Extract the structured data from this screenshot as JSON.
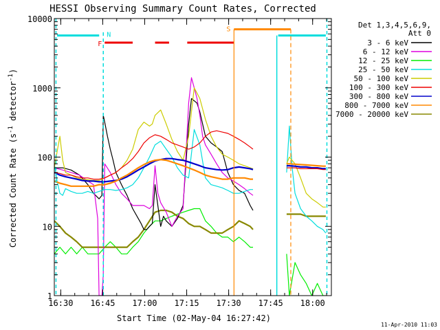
{
  "chart_data": {
    "type": "line",
    "title": "HESSI Observing Summary Count Rates, Corrected",
    "xlabel": "Start Time (02-May-04 16:27:42)",
    "ylabel": "Corrected Count Rate (s",
    "ylabel_sup1": "-1",
    "ylabel_mid": " detector",
    "ylabel_sup2": "-1",
    "ylabel_end": ")",
    "footer": "11-Apr-2010 11:03",
    "x_unit": "minutes since 16:27:42",
    "xlim": [
      0,
      99
    ],
    "ylim": [
      1,
      10000
    ],
    "yscale": "log",
    "x_ticks": [
      {
        "label": "16:30",
        "x": 2.3
      },
      {
        "label": "16:45",
        "x": 17.3
      },
      {
        "label": "17:00",
        "x": 32.3
      },
      {
        "label": "17:15",
        "x": 47.3
      },
      {
        "label": "17:30",
        "x": 62.3
      },
      {
        "label": "17:45",
        "x": 77.3
      },
      {
        "label": "18:00",
        "x": 92.3
      }
    ],
    "y_ticks": [
      {
        "label": "1",
        "v": 1
      },
      {
        "label": "10",
        "v": 10
      },
      {
        "label": "100",
        "v": 100
      },
      {
        "label": "1000",
        "v": 1000
      },
      {
        "label": "10000",
        "v": 10000
      }
    ],
    "legend_title": [
      "Det 1,3,4,5,6,9,",
      "Att 0"
    ],
    "gaps": [
      [
        72,
        83
      ]
    ],
    "series": [
      {
        "name": "3 - 6 keV",
        "color": "#000000",
        "x": [
          0,
          3,
          6,
          9,
          12,
          14,
          16,
          17,
          17.5,
          18,
          19,
          20,
          21,
          22,
          24,
          26,
          28,
          30,
          31,
          32,
          33,
          34,
          35,
          36,
          37,
          38,
          39,
          40,
          42,
          44,
          46,
          48,
          49,
          50,
          51,
          52,
          53,
          54,
          56,
          58,
          60,
          62,
          64,
          66,
          68,
          70,
          71
        ],
        "y": [
          70,
          70,
          65,
          55,
          40,
          30,
          25,
          28,
          400,
          320,
          200,
          130,
          90,
          60,
          40,
          28,
          18,
          13,
          11,
          9,
          9,
          10,
          11,
          40,
          20,
          10,
          14,
          12,
          10,
          13,
          20,
          300,
          700,
          650,
          600,
          450,
          300,
          200,
          160,
          140,
          120,
          60,
          40,
          33,
          30,
          20,
          17
        ]
      },
      {
        "name": "6 - 12 keV",
        "color": "#dd00dd",
        "x": [
          0,
          3,
          6,
          9,
          12,
          14,
          15.5,
          16,
          17,
          17.5,
          18,
          20,
          22,
          24,
          26,
          28,
          30,
          32,
          34,
          35,
          36,
          37,
          38,
          40,
          42,
          44,
          46,
          48,
          49,
          50,
          51,
          52,
          53,
          54,
          56,
          58,
          60,
          62,
          64,
          66,
          68,
          70,
          71
        ],
        "y": [
          70,
          65,
          60,
          55,
          45,
          40,
          13,
          1,
          1,
          2,
          80,
          60,
          40,
          30,
          25,
          20,
          20,
          20,
          18,
          20,
          75,
          30,
          22,
          16,
          10,
          14,
          18,
          600,
          1400,
          1000,
          700,
          400,
          200,
          150,
          110,
          80,
          60,
          50,
          45,
          40,
          35,
          30,
          28
        ]
      },
      {
        "name": "12 - 25 keV",
        "color": "#00ee00",
        "x": [
          0,
          2,
          4,
          6,
          8,
          10,
          12,
          14,
          16,
          18,
          20,
          22,
          24,
          26,
          28,
          30,
          32,
          34,
          36,
          38,
          40,
          42,
          44,
          46,
          48,
          50,
          52,
          54,
          56,
          58,
          60,
          62,
          64,
          66,
          68,
          70,
          71,
          72,
          83,
          84,
          86,
          88,
          90,
          92,
          94,
          96,
          97
        ],
        "y": [
          4,
          5,
          4,
          5,
          4,
          5,
          4,
          4,
          4,
          5,
          6,
          5,
          4,
          4,
          5,
          6,
          8,
          10,
          12,
          12,
          13,
          14,
          15,
          16,
          17,
          18,
          18,
          12,
          10,
          8,
          7,
          7,
          6,
          7,
          6,
          5,
          5,
          null,
          4,
          1,
          3,
          2,
          1.5,
          1,
          1.5,
          1,
          1
        ]
      },
      {
        "name": "25 - 50 keV",
        "color": "#00dddd",
        "x": [
          0,
          1,
          2,
          3,
          4,
          6,
          8,
          10,
          12,
          14,
          16,
          18,
          20,
          22,
          24,
          26,
          28,
          30,
          32,
          34,
          36,
          38,
          40,
          42,
          44,
          46,
          48,
          50,
          52,
          54,
          56,
          58,
          60,
          62,
          64,
          66,
          68,
          70,
          71,
          72,
          83,
          84,
          85,
          86,
          88,
          90,
          92,
          94,
          96,
          97
        ],
        "y": [
          80,
          45,
          30,
          28,
          35,
          32,
          30,
          30,
          32,
          30,
          32,
          34,
          34,
          33,
          34,
          36,
          40,
          50,
          70,
          100,
          150,
          170,
          130,
          100,
          70,
          55,
          50,
          250,
          150,
          50,
          40,
          38,
          36,
          33,
          30,
          30,
          32,
          34,
          34,
          null,
          60,
          280,
          70,
          30,
          18,
          14,
          12,
          10,
          9,
          8
        ]
      },
      {
        "name": "50 - 100 keV",
        "color": "#cccc00",
        "x": [
          0,
          1,
          2,
          3,
          4,
          6,
          8,
          10,
          12,
          14,
          16,
          18,
          20,
          22,
          24,
          26,
          28,
          30,
          32,
          34,
          35,
          36,
          38,
          40,
          42,
          44,
          46,
          48,
          50,
          52,
          54,
          56,
          58,
          60,
          62,
          64,
          66,
          68,
          70,
          71,
          72,
          83,
          84,
          86,
          88,
          90,
          92,
          94,
          96,
          97
        ],
        "y": [
          70,
          120,
          200,
          90,
          60,
          55,
          50,
          48,
          47,
          46,
          46,
          50,
          55,
          60,
          70,
          90,
          130,
          250,
          320,
          280,
          300,
          400,
          480,
          300,
          180,
          120,
          90,
          200,
          1000,
          700,
          350,
          200,
          140,
          110,
          100,
          90,
          80,
          75,
          70,
          68,
          null,
          80,
          100,
          80,
          50,
          30,
          25,
          22,
          19,
          19
        ]
      },
      {
        "name": "100 - 300 keV",
        "color": "#ee0000",
        "x": [
          0,
          2,
          4,
          6,
          8,
          10,
          12,
          14,
          16,
          18,
          20,
          22,
          24,
          26,
          28,
          30,
          32,
          34,
          36,
          38,
          40,
          42,
          44,
          46,
          48,
          50,
          52,
          54,
          56,
          58,
          60,
          62,
          64,
          66,
          68,
          70,
          71,
          72,
          83,
          84,
          86,
          88,
          90,
          92,
          94,
          96,
          97
        ],
        "y": [
          60,
          58,
          55,
          55,
          52,
          50,
          50,
          48,
          48,
          50,
          55,
          60,
          70,
          80,
          95,
          120,
          160,
          190,
          210,
          200,
          180,
          160,
          150,
          140,
          130,
          140,
          160,
          200,
          230,
          240,
          230,
          220,
          200,
          180,
          160,
          140,
          130,
          null,
          70,
          70,
          70,
          68,
          68,
          68,
          68,
          66,
          66
        ]
      },
      {
        "name": "300 - 800 keV",
        "color": "#0000cc",
        "x": [
          0,
          2,
          4,
          6,
          8,
          10,
          12,
          14,
          16,
          18,
          20,
          22,
          24,
          26,
          28,
          30,
          32,
          34,
          36,
          38,
          40,
          42,
          44,
          46,
          48,
          50,
          52,
          54,
          56,
          58,
          60,
          62,
          64,
          66,
          68,
          70,
          71,
          72,
          83,
          84,
          86,
          88,
          90,
          92,
          94,
          96,
          97
        ],
        "y": [
          60,
          55,
          52,
          50,
          48,
          46,
          45,
          45,
          44,
          44,
          45,
          46,
          48,
          52,
          58,
          65,
          72,
          80,
          88,
          92,
          95,
          95,
          92,
          90,
          85,
          80,
          75,
          70,
          68,
          66,
          65,
          66,
          70,
          72,
          70,
          68,
          66,
          null,
          75,
          75,
          74,
          72,
          72,
          70,
          70,
          68,
          68
        ]
      },
      {
        "name": "800 - 7000 keV",
        "color": "#ff8800",
        "x": [
          0,
          2,
          4,
          6,
          8,
          10,
          12,
          14,
          16,
          18,
          20,
          22,
          24,
          26,
          28,
          30,
          32,
          34,
          36,
          38,
          40,
          42,
          44,
          46,
          48,
          50,
          52,
          54,
          56,
          58,
          60,
          62,
          64,
          66,
          68,
          70,
          71,
          72,
          83,
          84,
          86,
          88,
          90,
          92,
          94,
          96,
          97
        ],
        "y": [
          45,
          42,
          40,
          38,
          38,
          38,
          38,
          38,
          40,
          40,
          42,
          45,
          50,
          55,
          62,
          70,
          78,
          85,
          90,
          92,
          90,
          85,
          80,
          75,
          70,
          65,
          60,
          55,
          52,
          50,
          48,
          48,
          50,
          50,
          50,
          48,
          48,
          null,
          80,
          80,
          79,
          78,
          77,
          76,
          75,
          74,
          74
        ]
      },
      {
        "name": "7000 - 20000 keV",
        "color": "#888800",
        "x": [
          0,
          2,
          4,
          6,
          8,
          10,
          12,
          14,
          16,
          18,
          20,
          22,
          24,
          26,
          28,
          30,
          32,
          34,
          36,
          38,
          40,
          42,
          44,
          46,
          48,
          50,
          52,
          54,
          56,
          58,
          60,
          62,
          64,
          66,
          68,
          70,
          71,
          72,
          83,
          84,
          86,
          88,
          90,
          92,
          94,
          96,
          97
        ],
        "y": [
          12,
          10,
          8,
          7,
          6,
          5,
          5,
          5,
          5,
          5,
          5,
          5,
          5,
          5,
          6,
          7,
          9,
          12,
          16,
          17,
          17,
          16,
          14,
          13,
          11,
          10,
          10,
          9,
          8,
          8,
          8,
          9,
          10,
          12,
          11,
          10,
          9,
          null,
          15,
          15,
          15,
          15,
          14,
          14,
          14,
          14,
          14
        ]
      }
    ],
    "annotations": {
      "N": {
        "label": "N",
        "color": "#00dddd",
        "x1": 1,
        "x2": 17.5,
        "value": 5700,
        "line_x": [
          0.6,
          17.5,
          79.5,
          97.4
        ]
      },
      "F": {
        "label": "F",
        "color": "#ee0000",
        "value": 4500,
        "segments": [
          [
            18,
            28
          ],
          [
            36,
            41
          ],
          [
            47.5,
            64.2
          ]
        ]
      },
      "S": {
        "label": "S",
        "color": "#ff8800",
        "x1": 64.2,
        "x2": 84.5,
        "value": 7000,
        "line_x": [
          64.2
        ],
        "dash_x": [
          84.5
        ]
      }
    }
  }
}
